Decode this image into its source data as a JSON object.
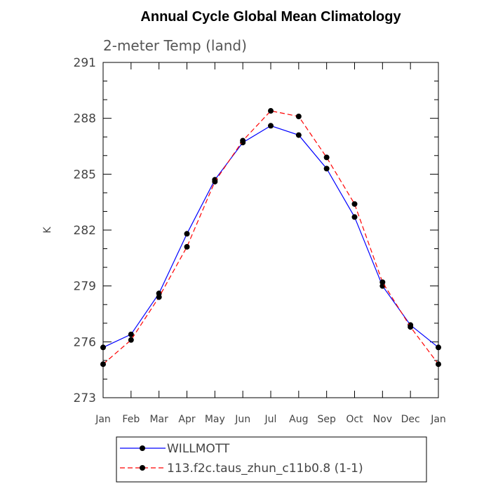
{
  "chart_data": {
    "type": "line",
    "title": "Annual Cycle Global Mean Climatology",
    "subtitle": "2-meter Temp (land)",
    "xlabel": "",
    "ylabel": "K",
    "categories": [
      "Jan",
      "Feb",
      "Mar",
      "Apr",
      "May",
      "Jun",
      "Jul",
      "Aug",
      "Sep",
      "Oct",
      "Nov",
      "Dec",
      "Jan"
    ],
    "ylim": [
      273,
      291
    ],
    "yticks": [
      273,
      276,
      279,
      282,
      285,
      288,
      291
    ],
    "grid": false,
    "legend_position": "bottom",
    "series": [
      {
        "name": "WILLMOTT",
        "color": "#0000ff",
        "line_style": "solid",
        "marker": "filled-circle",
        "values": [
          275.7,
          276.4,
          278.6,
          281.8,
          284.7,
          286.7,
          287.6,
          287.1,
          285.3,
          282.7,
          279.0,
          276.9,
          275.7
        ]
      },
      {
        "name": "113.f2c.taus_zhun_c11b0.8 (1-1)",
        "color": "#ff0000",
        "line_style": "dashed",
        "marker": "filled-circle",
        "values": [
          274.8,
          276.1,
          278.4,
          281.1,
          284.6,
          286.8,
          288.4,
          288.1,
          285.9,
          283.4,
          279.2,
          276.8,
          274.8
        ]
      }
    ]
  }
}
